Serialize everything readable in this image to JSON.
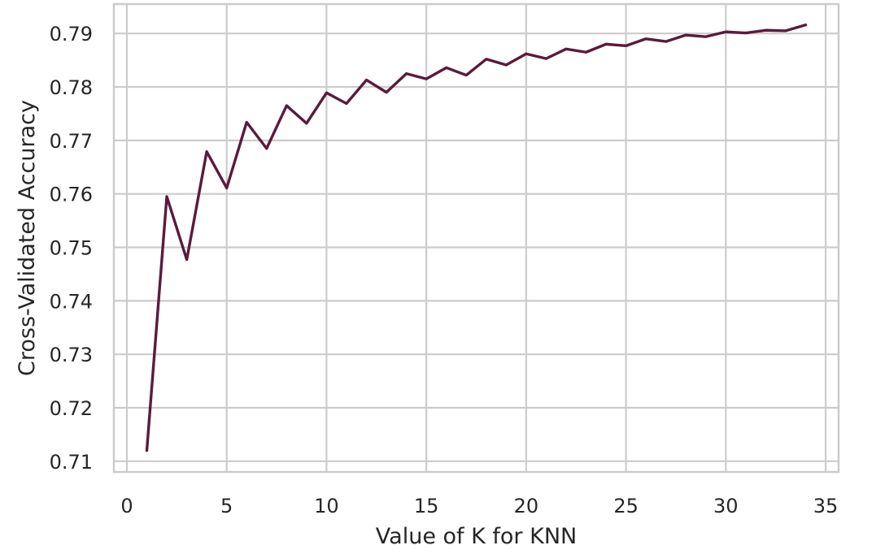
{
  "chart_data": {
    "type": "line",
    "title": "",
    "xlabel": "Value of K for KNN",
    "ylabel": "Cross-Validated Accuracy",
    "xlim": [
      -0.65,
      35.65
    ],
    "ylim": [
      0.708,
      0.7955
    ],
    "x_ticks": [
      0,
      5,
      10,
      15,
      20,
      25,
      30,
      35
    ],
    "y_ticks": [
      0.71,
      0.72,
      0.73,
      0.74,
      0.75,
      0.76,
      0.77,
      0.78,
      0.79
    ],
    "x_tick_labels": [
      "0",
      "5",
      "10",
      "15",
      "20",
      "25",
      "30",
      "35"
    ],
    "y_tick_labels": [
      "0.71",
      "0.72",
      "0.73",
      "0.74",
      "0.75",
      "0.76",
      "0.77",
      "0.78",
      "0.79"
    ],
    "grid": true,
    "colors": {
      "line": "#5b1a3c",
      "grid": "#cccccc",
      "background": "#ffffff"
    },
    "series": [
      {
        "x": [
          1,
          2,
          3,
          4,
          5,
          6,
          7,
          8,
          9,
          10,
          11,
          12,
          13,
          14,
          15,
          16,
          17,
          18,
          19,
          20,
          21,
          22,
          23,
          24,
          25,
          26,
          27,
          28,
          29,
          30,
          31,
          32,
          33,
          34
        ],
        "values": [
          0.712,
          0.7595,
          0.7477,
          0.7679,
          0.7611,
          0.7734,
          0.7685,
          0.7765,
          0.7732,
          0.7789,
          0.7769,
          0.7813,
          0.779,
          0.7825,
          0.7815,
          0.7836,
          0.7822,
          0.7852,
          0.7841,
          0.7862,
          0.7853,
          0.7871,
          0.7865,
          0.788,
          0.7877,
          0.789,
          0.7885,
          0.7897,
          0.7894,
          0.7903,
          0.7901,
          0.7906,
          0.7905,
          0.7916
        ]
      }
    ]
  }
}
